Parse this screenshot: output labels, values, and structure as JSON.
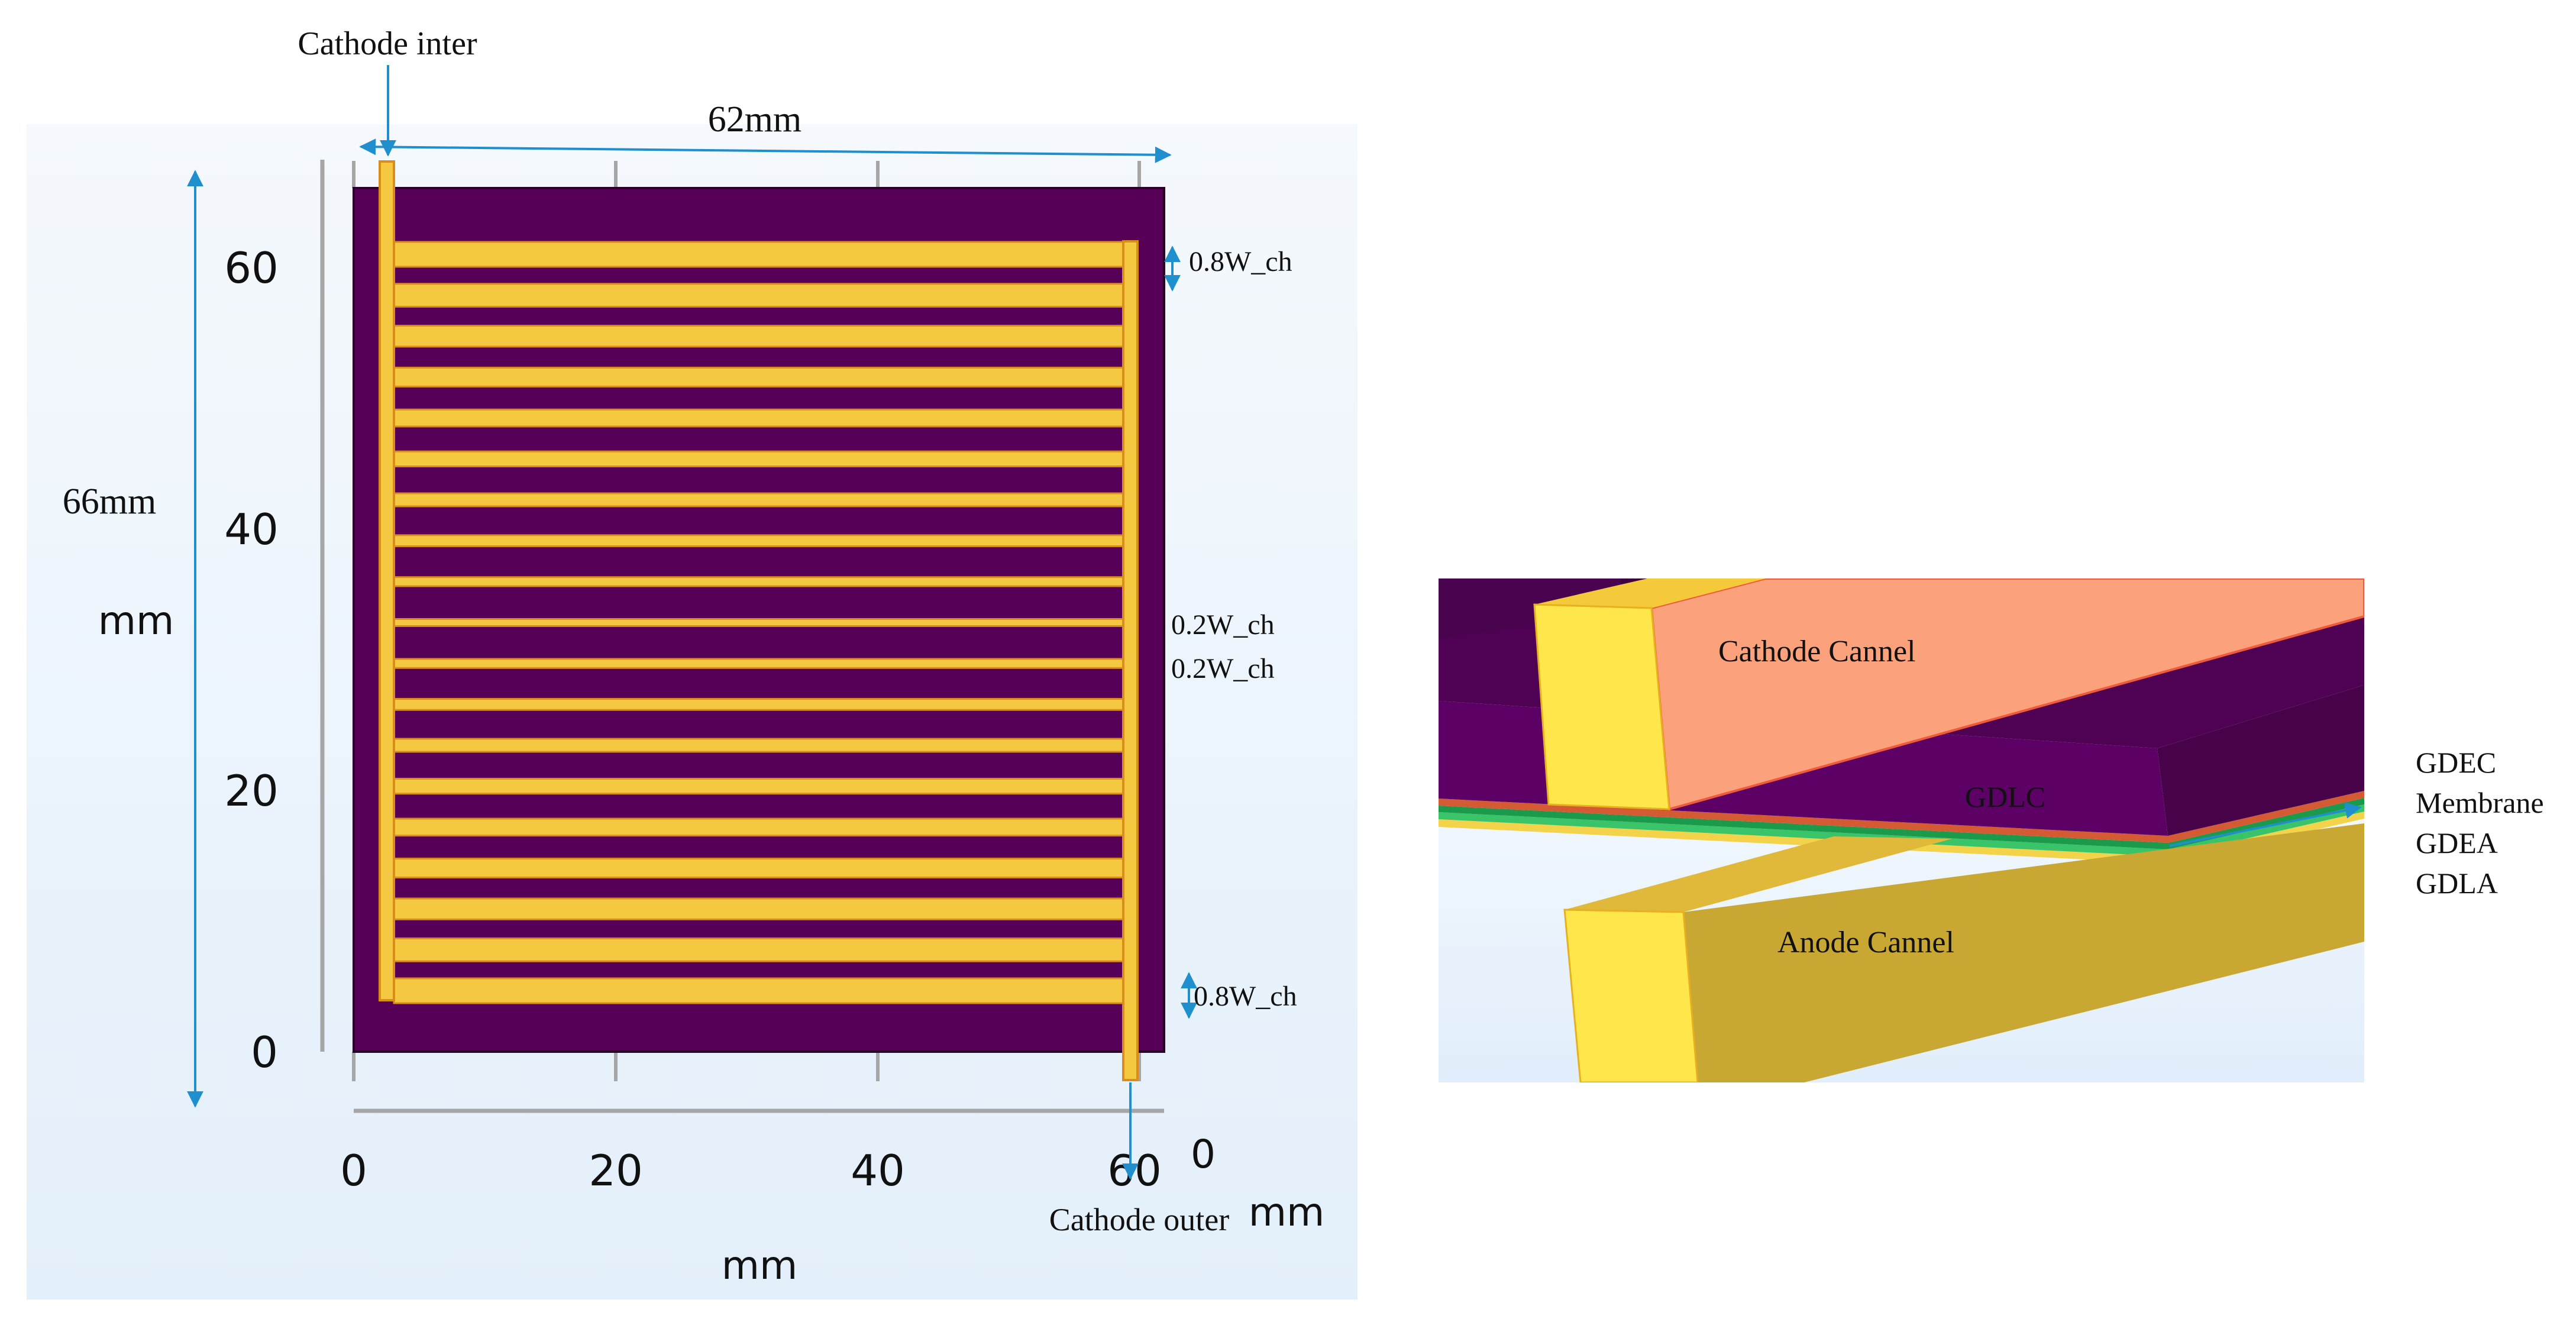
{
  "left_panel": {
    "dimension_width": "62mm",
    "dimension_height": "66mm",
    "y_axis": {
      "ticks": [
        "0",
        "20",
        "40",
        "60"
      ],
      "unit_label": "mm"
    },
    "x_axis": {
      "ticks": [
        "0",
        "20",
        "40",
        "60"
      ],
      "unit_label": "mm"
    },
    "z_axis": {
      "tick": "0",
      "unit_label": "mm"
    },
    "labels": {
      "cathode_inter": "Cathode inter",
      "cathode_outer": "Cathode outer",
      "rib_top": "0.8W_ch",
      "rib_bottom": "0.8W_ch",
      "center_upper": "0.2W_ch",
      "center_lower": "0.2W_ch"
    },
    "channel_count": 19
  },
  "right_panel": {
    "labels": {
      "cathode_channel": "Cathode Cannel",
      "anode_channel": "Anode Cannel",
      "gdlc": "GDLC"
    },
    "layer_labels": [
      "GDEC",
      "Membrane",
      "GDEA",
      "GDLA"
    ]
  },
  "colors": {
    "plate": "#560058",
    "channel": "#f5c842",
    "channel_edge": "#d98d1a",
    "arrow": "#1f8fce",
    "panel_bg_top": "#f4f8fd",
    "panel_bg_bottom": "#e4f0fb",
    "cathode_face": "#fba27c",
    "anode_face": "#c8a733",
    "membrane": "#39c46a"
  }
}
